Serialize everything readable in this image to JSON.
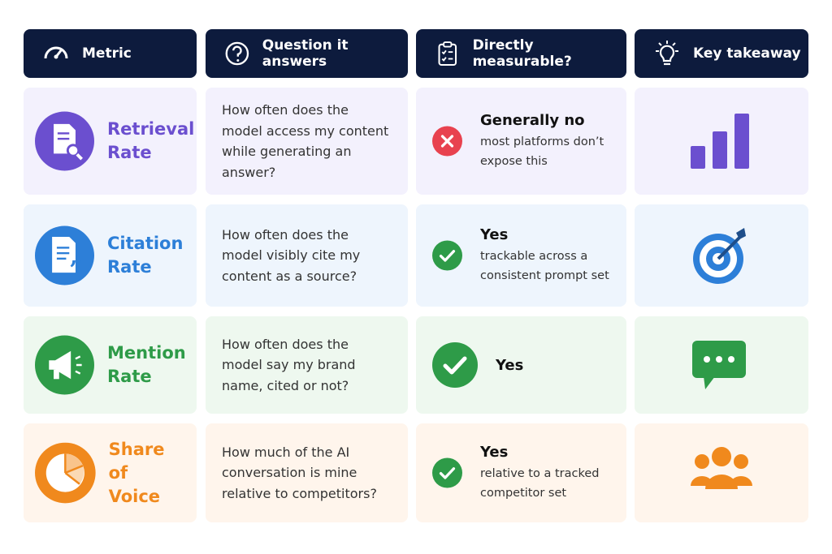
{
  "header": {
    "columns": [
      "Metric",
      "Question it answers",
      "Directly measurable?",
      "Key takeaway"
    ]
  },
  "table": {
    "rows": [
      {
        "metric": "Retrieval Rate",
        "question": "How often does the model access my content while generating an answer?",
        "answer": "Generally no",
        "note": "most platforms don’t expose this"
      },
      {
        "metric": "Citation Rate",
        "question": "How often does the model visibly cite my content as a source?",
        "answer": "Yes",
        "note": "trackable across a consistent prompt set"
      },
      {
        "metric": "Mention Rate",
        "question": "How often does the model say my brand name, cited or not?",
        "answer": "Yes"
      },
      {
        "metric": "Share of Voice",
        "question": "How much of the AI conversation is mine relative to competitors?",
        "answer": "Yes",
        "note": "relative to a tracked competitor set"
      }
    ]
  }
}
